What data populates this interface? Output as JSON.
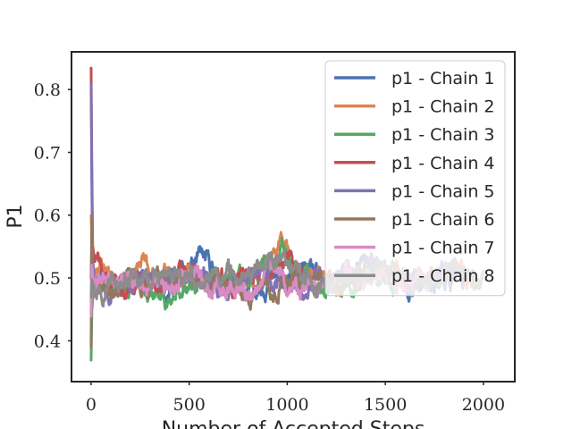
{
  "chart_data": {
    "type": "line",
    "title": "",
    "xlabel": "Number of Accepted Steps",
    "ylabel": "P1",
    "xlim": [
      -100,
      2160
    ],
    "ylim": [
      0.335,
      0.86
    ],
    "x_ticks": [
      0,
      500,
      1000,
      1500,
      2000
    ],
    "y_ticks": [
      0.4,
      0.5,
      0.6,
      0.7,
      0.8
    ],
    "x_tick_labels": [
      "0",
      "500",
      "1000",
      "1500",
      "2000"
    ],
    "y_tick_labels": [
      "0.4",
      "0.5",
      "0.6",
      "0.7",
      "0.8"
    ],
    "grid": false,
    "legend_position": "top-right",
    "series": [
      {
        "name": "p1 - Chain 1",
        "color": "#4c72b0",
        "length": 1870,
        "start": 0.5,
        "seed": 11,
        "knots": [
          [
            0,
            0.5
          ],
          [
            4,
            0.58
          ],
          [
            12,
            0.49
          ],
          [
            40,
            0.52
          ],
          [
            120,
            0.49
          ],
          [
            250,
            0.51
          ],
          [
            350,
            0.48
          ],
          [
            450,
            0.5
          ],
          [
            560,
            0.53
          ],
          [
            650,
            0.5
          ],
          [
            780,
            0.47
          ],
          [
            900,
            0.5
          ],
          [
            1000,
            0.49
          ],
          [
            1100,
            0.51
          ],
          [
            1200,
            0.48
          ],
          [
            1300,
            0.5
          ],
          [
            1400,
            0.52
          ],
          [
            1500,
            0.5
          ],
          [
            1650,
            0.49
          ],
          [
            1800,
            0.5
          ],
          [
            1870,
            0.5
          ]
        ]
      },
      {
        "name": "p1 - Chain 2",
        "color": "#dd8452",
        "length": 1980,
        "start": 0.6,
        "seed": 23,
        "knots": [
          [
            0,
            0.6
          ],
          [
            4,
            0.56
          ],
          [
            12,
            0.5
          ],
          [
            40,
            0.53
          ],
          [
            150,
            0.49
          ],
          [
            250,
            0.52
          ],
          [
            350,
            0.5
          ],
          [
            450,
            0.51
          ],
          [
            600,
            0.5
          ],
          [
            750,
            0.49
          ],
          [
            900,
            0.53
          ],
          [
            1000,
            0.55
          ],
          [
            1100,
            0.5
          ],
          [
            1250,
            0.49
          ],
          [
            1400,
            0.51
          ],
          [
            1500,
            0.52
          ],
          [
            1650,
            0.49
          ],
          [
            1800,
            0.5
          ],
          [
            1900,
            0.51
          ],
          [
            1980,
            0.49
          ]
        ]
      },
      {
        "name": "p1 - Chain 3",
        "color": "#55a868",
        "length": 1560,
        "start": 0.37,
        "seed": 37,
        "knots": [
          [
            0,
            0.37
          ],
          [
            4,
            0.45
          ],
          [
            12,
            0.49
          ],
          [
            40,
            0.5
          ],
          [
            150,
            0.49
          ],
          [
            300,
            0.48
          ],
          [
            420,
            0.46
          ],
          [
            500,
            0.49
          ],
          [
            650,
            0.5
          ],
          [
            800,
            0.49
          ],
          [
            900,
            0.52
          ],
          [
            980,
            0.55
          ],
          [
            1050,
            0.51
          ],
          [
            1150,
            0.49
          ],
          [
            1300,
            0.47
          ],
          [
            1400,
            0.49
          ],
          [
            1450,
            0.51
          ],
          [
            1560,
            0.49
          ]
        ]
      },
      {
        "name": "p1 - Chain 4",
        "color": "#c44e52",
        "length": 1080,
        "start": 0.835,
        "seed": 41,
        "knots": [
          [
            0,
            0.835
          ],
          [
            3,
            0.7
          ],
          [
            8,
            0.55
          ],
          [
            20,
            0.53
          ],
          [
            60,
            0.5
          ],
          [
            150,
            0.48
          ],
          [
            250,
            0.5
          ],
          [
            350,
            0.49
          ],
          [
            480,
            0.52
          ],
          [
            560,
            0.5
          ],
          [
            700,
            0.49
          ],
          [
            800,
            0.51
          ],
          [
            900,
            0.5
          ],
          [
            1000,
            0.53
          ],
          [
            1080,
            0.5
          ]
        ]
      },
      {
        "name": "p1 - Chain 5",
        "color": "#8172b3",
        "length": 1960,
        "start": 0.81,
        "seed": 53,
        "knots": [
          [
            0,
            0.81
          ],
          [
            3,
            0.66
          ],
          [
            8,
            0.53
          ],
          [
            20,
            0.5
          ],
          [
            100,
            0.49
          ],
          [
            250,
            0.5
          ],
          [
            400,
            0.49
          ],
          [
            550,
            0.51
          ],
          [
            700,
            0.48
          ],
          [
            850,
            0.5
          ],
          [
            1000,
            0.49
          ],
          [
            1150,
            0.5
          ],
          [
            1300,
            0.51
          ],
          [
            1450,
            0.53
          ],
          [
            1550,
            0.5
          ],
          [
            1700,
            0.49
          ],
          [
            1850,
            0.51
          ],
          [
            1960,
            0.5
          ]
        ]
      },
      {
        "name": "p1 - Chain 6",
        "color": "#937860",
        "length": 1400,
        "start": 0.39,
        "seed": 67,
        "knots": [
          [
            0,
            0.39
          ],
          [
            3,
            0.62
          ],
          [
            8,
            0.5
          ],
          [
            20,
            0.49
          ],
          [
            100,
            0.5
          ],
          [
            250,
            0.48
          ],
          [
            400,
            0.5
          ],
          [
            550,
            0.49
          ],
          [
            700,
            0.5
          ],
          [
            850,
            0.48
          ],
          [
            1000,
            0.5
          ],
          [
            1150,
            0.49
          ],
          [
            1300,
            0.5
          ],
          [
            1400,
            0.49
          ]
        ]
      },
      {
        "name": "p1 - Chain 7",
        "color": "#da8bc3",
        "length": 1760,
        "start": 0.44,
        "seed": 79,
        "knots": [
          [
            0,
            0.44
          ],
          [
            4,
            0.52
          ],
          [
            12,
            0.49
          ],
          [
            60,
            0.51
          ],
          [
            200,
            0.5
          ],
          [
            350,
            0.49
          ],
          [
            500,
            0.5
          ],
          [
            650,
            0.49
          ],
          [
            850,
            0.48
          ],
          [
            900,
            0.52
          ],
          [
            1000,
            0.49
          ],
          [
            1150,
            0.48
          ],
          [
            1300,
            0.5
          ],
          [
            1450,
            0.49
          ],
          [
            1600,
            0.5
          ],
          [
            1760,
            0.49
          ]
        ]
      },
      {
        "name": "p1 - Chain 8",
        "color": "#8c8c8c",
        "length": 2000,
        "start": 0.47,
        "seed": 97,
        "knots": [
          [
            0,
            0.47
          ],
          [
            4,
            0.5
          ],
          [
            20,
            0.49
          ],
          [
            100,
            0.5
          ],
          [
            250,
            0.49
          ],
          [
            400,
            0.5
          ],
          [
            550,
            0.49
          ],
          [
            700,
            0.5
          ],
          [
            800,
            0.49
          ],
          [
            880,
            0.52
          ],
          [
            960,
            0.54
          ],
          [
            1050,
            0.51
          ],
          [
            1150,
            0.49
          ],
          [
            1300,
            0.5
          ],
          [
            1450,
            0.51
          ],
          [
            1600,
            0.5
          ],
          [
            1750,
            0.49
          ],
          [
            1900,
            0.51
          ],
          [
            2000,
            0.5
          ]
        ]
      }
    ]
  }
}
